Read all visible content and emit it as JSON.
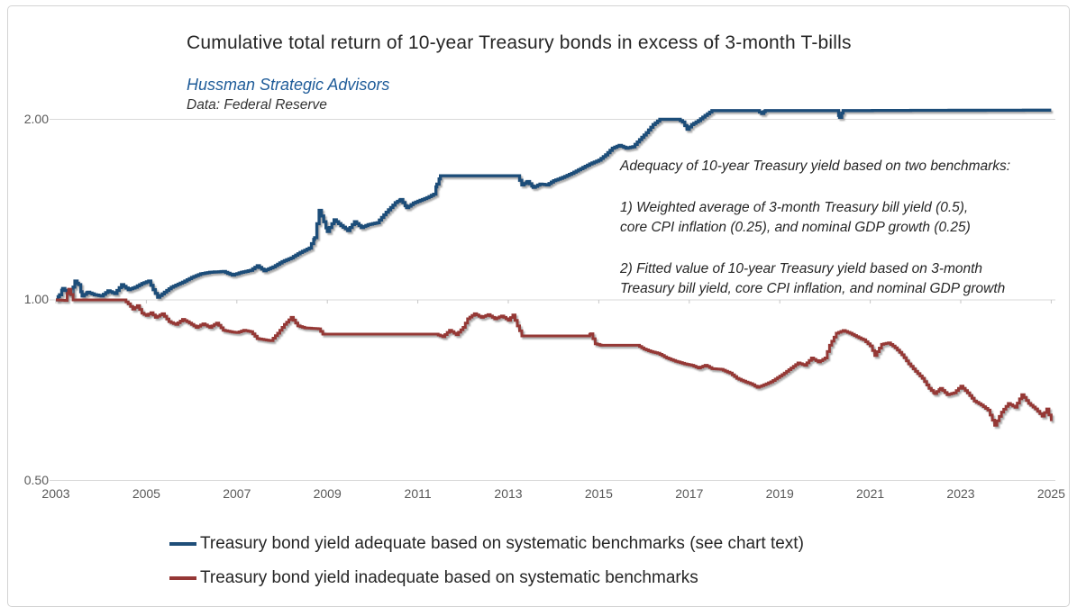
{
  "header": {
    "title": "Cumulative total return of 10-year Treasury bonds in excess of 3-month T-bills",
    "attribution": "Hussman Strategic Advisors",
    "data_source": "Data: Federal Reserve"
  },
  "annotation": {
    "paragraphs": [
      [
        "Adequacy of 10-year Treasury yield based on two benchmarks:"
      ],
      [
        "1) Weighted average of 3-month Treasury bill yield (0.5),",
        "core CPI inflation (0.25), and nominal GDP growth (0.25)"
      ],
      [
        "2) Fitted value of 10-year Treasury yield based on 3-month",
        "Treasury bill yield, core CPI inflation, and nominal GDP growth"
      ]
    ]
  },
  "legend": {
    "items": [
      {
        "label": "Treasury bond yield adequate based on systematic benchmarks (see chart text)",
        "color": "#1F4E79"
      },
      {
        "label": "Treasury bond yield inadequate based on systematic benchmarks",
        "color": "#953735"
      }
    ]
  },
  "colors": {
    "adequate_line": "#1F4E79",
    "inadequate_line": "#953735",
    "gridline": "#D9D9D9",
    "tick_mark": "#C6C6C6",
    "axis_text": "#595959",
    "title_text": "#262626",
    "attribution_text": "#1F5C99",
    "shadow": "#8A8A8A"
  },
  "chart_data": {
    "type": "line",
    "title": "Cumulative total return of 10-year Treasury bonds in excess of 3-month T-bills",
    "xlabel": "",
    "ylabel": "",
    "grid": "horizontal",
    "legend_position": "bottom",
    "x_axis": {
      "ticks": [
        2003,
        2005,
        2007,
        2009,
        2011,
        2013,
        2015,
        2017,
        2019,
        2021,
        2023,
        2025
      ],
      "min": 2003,
      "max": 2025
    },
    "y_axis": {
      "scale": "log",
      "ticks": [
        {
          "value": 2.0,
          "label": "2.00"
        },
        {
          "value": 1.0,
          "label": "1.00"
        },
        {
          "value": 0.5,
          "label": "0.50"
        }
      ],
      "range": [
        0.45,
        2.25
      ]
    },
    "series": [
      {
        "name": "Treasury bond yield adequate based on systematic benchmarks (see chart text)",
        "color": "#1F4E79",
        "width": 3.4,
        "points": [
          [
            2003.0,
            1.0
          ],
          [
            2003.08,
            1.02
          ],
          [
            2003.15,
            1.045
          ],
          [
            2003.25,
            1.028
          ],
          [
            2003.33,
            1.02
          ],
          [
            2003.42,
            1.075
          ],
          [
            2003.5,
            1.06
          ],
          [
            2003.58,
            1.015
          ],
          [
            2003.7,
            1.03
          ],
          [
            2003.85,
            1.02
          ],
          [
            2004.0,
            1.015
          ],
          [
            2004.15,
            1.035
          ],
          [
            2004.3,
            1.025
          ],
          [
            2004.45,
            1.06
          ],
          [
            2004.6,
            1.04
          ],
          [
            2004.75,
            1.05
          ],
          [
            2004.9,
            1.065
          ],
          [
            2005.05,
            1.075
          ],
          [
            2005.15,
            1.04
          ],
          [
            2005.25,
            1.01
          ],
          [
            2005.4,
            1.03
          ],
          [
            2005.55,
            1.05
          ],
          [
            2005.7,
            1.062
          ],
          [
            2005.85,
            1.075
          ],
          [
            2006.0,
            1.09
          ],
          [
            2006.2,
            1.105
          ],
          [
            2006.4,
            1.112
          ],
          [
            2006.7,
            1.115
          ],
          [
            2006.9,
            1.1
          ],
          [
            2007.1,
            1.112
          ],
          [
            2007.3,
            1.12
          ],
          [
            2007.45,
            1.14
          ],
          [
            2007.6,
            1.118
          ],
          [
            2007.8,
            1.135
          ],
          [
            2008.0,
            1.158
          ],
          [
            2008.2,
            1.175
          ],
          [
            2008.4,
            1.2
          ],
          [
            2008.6,
            1.22
          ],
          [
            2008.72,
            1.27
          ],
          [
            2008.82,
            1.41
          ],
          [
            2008.92,
            1.35
          ],
          [
            2009.0,
            1.3
          ],
          [
            2009.15,
            1.36
          ],
          [
            2009.3,
            1.33
          ],
          [
            2009.45,
            1.305
          ],
          [
            2009.6,
            1.35
          ],
          [
            2009.75,
            1.32
          ],
          [
            2009.9,
            1.335
          ],
          [
            2010.1,
            1.345
          ],
          [
            2010.3,
            1.4
          ],
          [
            2010.5,
            1.452
          ],
          [
            2010.62,
            1.47
          ],
          [
            2010.75,
            1.425
          ],
          [
            2010.9,
            1.45
          ],
          [
            2011.05,
            1.465
          ],
          [
            2011.2,
            1.48
          ],
          [
            2011.35,
            1.5
          ],
          [
            2011.42,
            1.56
          ],
          [
            2011.5,
            1.61
          ],
          [
            2013.2,
            1.61
          ],
          [
            2013.3,
            1.555
          ],
          [
            2013.42,
            1.575
          ],
          [
            2013.55,
            1.54
          ],
          [
            2013.7,
            1.56
          ],
          [
            2013.85,
            1.555
          ],
          [
            2014.0,
            1.58
          ],
          [
            2014.2,
            1.6
          ],
          [
            2014.4,
            1.625
          ],
          [
            2014.6,
            1.655
          ],
          [
            2014.8,
            1.685
          ],
          [
            2015.0,
            1.71
          ],
          [
            2015.15,
            1.745
          ],
          [
            2015.3,
            1.79
          ],
          [
            2015.45,
            1.81
          ],
          [
            2015.6,
            1.79
          ],
          [
            2015.75,
            1.8
          ],
          [
            2015.9,
            1.85
          ],
          [
            2016.05,
            1.9
          ],
          [
            2016.2,
            1.96
          ],
          [
            2016.35,
            2.0
          ],
          [
            2016.75,
            2.0
          ],
          [
            2016.85,
            1.98
          ],
          [
            2016.95,
            1.925
          ],
          [
            2017.05,
            1.96
          ],
          [
            2017.2,
            1.99
          ],
          [
            2017.35,
            2.03
          ],
          [
            2017.5,
            2.068
          ],
          [
            2018.5,
            2.068
          ],
          [
            2018.6,
            2.045
          ],
          [
            2018.68,
            2.068
          ],
          [
            2020.25,
            2.068
          ],
          [
            2020.32,
            2.015
          ],
          [
            2020.4,
            2.068
          ],
          [
            2025.0,
            2.072
          ]
        ]
      },
      {
        "name": "Treasury bond yield inadequate based on systematic benchmarks",
        "color": "#953735",
        "width": 3.0,
        "points": [
          [
            2003.0,
            1.0
          ],
          [
            2003.2,
            0.998
          ],
          [
            2003.28,
            1.042
          ],
          [
            2003.38,
            1.0
          ],
          [
            2004.5,
            1.0
          ],
          [
            2004.6,
            0.985
          ],
          [
            2004.7,
            0.965
          ],
          [
            2004.8,
            0.978
          ],
          [
            2004.9,
            0.95
          ],
          [
            2005.0,
            0.942
          ],
          [
            2005.1,
            0.952
          ],
          [
            2005.2,
            0.935
          ],
          [
            2005.35,
            0.948
          ],
          [
            2005.5,
            0.92
          ],
          [
            2005.65,
            0.91
          ],
          [
            2005.8,
            0.928
          ],
          [
            2005.95,
            0.915
          ],
          [
            2006.1,
            0.9
          ],
          [
            2006.25,
            0.912
          ],
          [
            2006.4,
            0.9
          ],
          [
            2006.55,
            0.915
          ],
          [
            2006.7,
            0.89
          ],
          [
            2006.85,
            0.885
          ],
          [
            2007.0,
            0.882
          ],
          [
            2007.15,
            0.89
          ],
          [
            2007.3,
            0.885
          ],
          [
            2007.45,
            0.862
          ],
          [
            2007.6,
            0.858
          ],
          [
            2007.75,
            0.855
          ],
          [
            2007.9,
            0.88
          ],
          [
            2008.05,
            0.91
          ],
          [
            2008.2,
            0.935
          ],
          [
            2008.35,
            0.905
          ],
          [
            2008.5,
            0.898
          ],
          [
            2008.8,
            0.895
          ],
          [
            2008.9,
            0.877
          ],
          [
            2011.4,
            0.877
          ],
          [
            2011.55,
            0.868
          ],
          [
            2011.7,
            0.89
          ],
          [
            2011.85,
            0.875
          ],
          [
            2012.0,
            0.9
          ],
          [
            2012.1,
            0.93
          ],
          [
            2012.25,
            0.948
          ],
          [
            2012.4,
            0.935
          ],
          [
            2012.55,
            0.945
          ],
          [
            2012.7,
            0.93
          ],
          [
            2012.85,
            0.94
          ],
          [
            2013.0,
            0.925
          ],
          [
            2013.1,
            0.944
          ],
          [
            2013.2,
            0.905
          ],
          [
            2013.3,
            0.871
          ],
          [
            2014.75,
            0.871
          ],
          [
            2014.82,
            0.878
          ],
          [
            2014.92,
            0.845
          ],
          [
            2015.05,
            0.84
          ],
          [
            2015.85,
            0.84
          ],
          [
            2016.0,
            0.828
          ],
          [
            2016.15,
            0.82
          ],
          [
            2016.3,
            0.815
          ],
          [
            2016.5,
            0.8
          ],
          [
            2016.7,
            0.79
          ],
          [
            2016.9,
            0.782
          ],
          [
            2017.05,
            0.778
          ],
          [
            2017.2,
            0.77
          ],
          [
            2017.35,
            0.778
          ],
          [
            2017.5,
            0.768
          ],
          [
            2017.7,
            0.766
          ],
          [
            2017.9,
            0.755
          ],
          [
            2018.05,
            0.74
          ],
          [
            2018.2,
            0.732
          ],
          [
            2018.35,
            0.725
          ],
          [
            2018.5,
            0.715
          ],
          [
            2018.65,
            0.722
          ],
          [
            2018.8,
            0.73
          ],
          [
            2018.95,
            0.742
          ],
          [
            2019.1,
            0.755
          ],
          [
            2019.25,
            0.77
          ],
          [
            2019.4,
            0.785
          ],
          [
            2019.55,
            0.778
          ],
          [
            2019.7,
            0.8
          ],
          [
            2019.85,
            0.788
          ],
          [
            2020.0,
            0.8
          ],
          [
            2020.1,
            0.84
          ],
          [
            2020.25,
            0.88
          ],
          [
            2020.4,
            0.889
          ],
          [
            2020.55,
            0.88
          ],
          [
            2020.7,
            0.868
          ],
          [
            2020.85,
            0.858
          ],
          [
            2021.0,
            0.838
          ],
          [
            2021.1,
            0.808
          ],
          [
            2021.25,
            0.843
          ],
          [
            2021.4,
            0.848
          ],
          [
            2021.55,
            0.832
          ],
          [
            2021.7,
            0.81
          ],
          [
            2021.85,
            0.782
          ],
          [
            2022.0,
            0.76
          ],
          [
            2022.15,
            0.74
          ],
          [
            2022.3,
            0.712
          ],
          [
            2022.42,
            0.698
          ],
          [
            2022.55,
            0.712
          ],
          [
            2022.7,
            0.695
          ],
          [
            2022.85,
            0.7
          ],
          [
            2023.0,
            0.718
          ],
          [
            2023.15,
            0.7
          ],
          [
            2023.3,
            0.678
          ],
          [
            2023.45,
            0.668
          ],
          [
            2023.6,
            0.655
          ],
          [
            2023.75,
            0.618
          ],
          [
            2023.9,
            0.65
          ],
          [
            2024.05,
            0.672
          ],
          [
            2024.2,
            0.662
          ],
          [
            2024.35,
            0.695
          ],
          [
            2024.5,
            0.672
          ],
          [
            2024.65,
            0.658
          ],
          [
            2024.8,
            0.64
          ],
          [
            2024.9,
            0.658
          ],
          [
            2025.0,
            0.628
          ]
        ]
      }
    ]
  }
}
